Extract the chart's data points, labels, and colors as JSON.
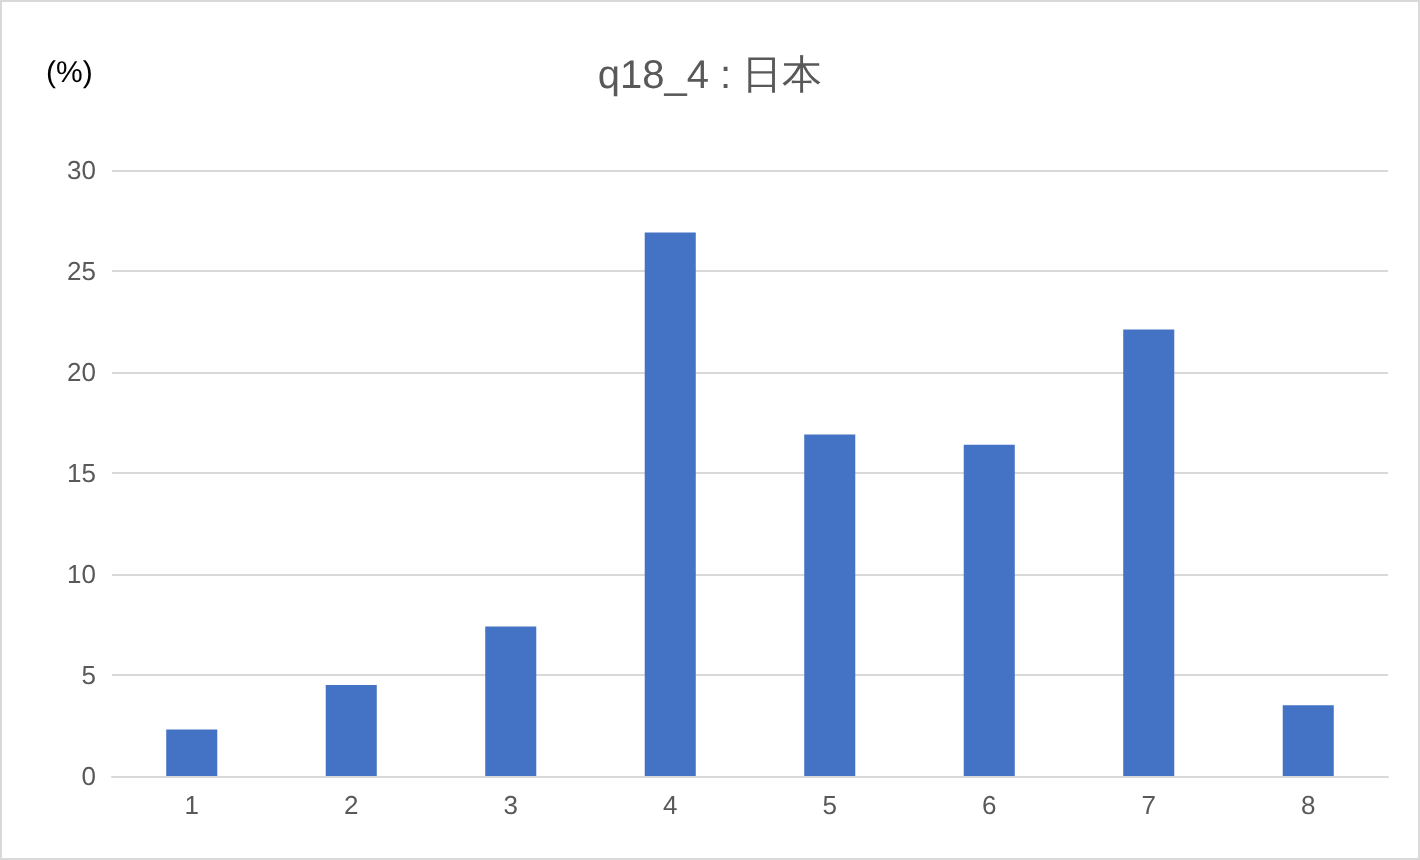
{
  "chart_data": {
    "type": "bar",
    "title": "q18_4 : 日本",
    "ylabel": "(%)",
    "categories": [
      "1",
      "2",
      "3",
      "4",
      "5",
      "6",
      "7",
      "8"
    ],
    "values": [
      2.3,
      4.5,
      7.4,
      26.9,
      16.9,
      16.4,
      22.1,
      3.5
    ],
    "color": "#4472c4",
    "ylim": [
      0,
      30
    ],
    "yticks": [
      0,
      5,
      10,
      15,
      20,
      25,
      30
    ],
    "grid": "y"
  }
}
